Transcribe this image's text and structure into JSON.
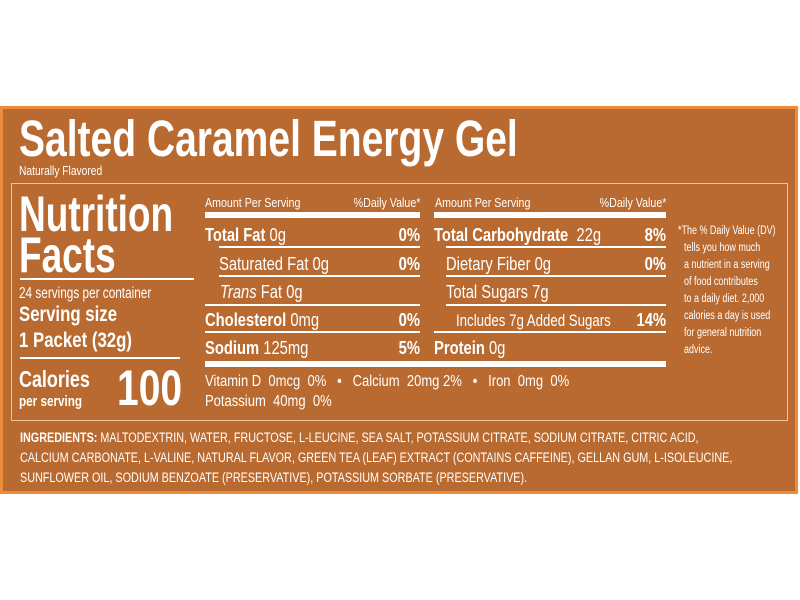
{
  "title": "Salted Caramel Energy Gel",
  "subtitle": "Naturally Flavored",
  "panel": {
    "heading_line1": "Nutrition",
    "heading_line2": "Facts",
    "servings": "24 servings per container",
    "serving_size_label": "Serving size",
    "serving_size_value": "1 Packet (32g)",
    "calories_label": "Calories",
    "per_serving": "per serving",
    "calories_value": "100"
  },
  "left_table": {
    "header_amount": "Amount Per Serving",
    "header_dv": "%Daily Value*",
    "rows": [
      {
        "name": "Total Fat",
        "amount": "0g",
        "dv": "0%"
      },
      {
        "name": "Saturated Fat",
        "amount": "0g",
        "dv": "0%"
      },
      {
        "name": "Trans",
        "name_suffix": "Fat",
        "amount": "0g",
        "dv": ""
      },
      {
        "name": "Cholesterol",
        "amount": "0mg",
        "dv": "0%"
      },
      {
        "name": "Sodium",
        "amount": "125mg",
        "dv": "5%"
      }
    ]
  },
  "right_table": {
    "header_amount": "Amount Per Serving",
    "header_dv": "%Daily Value*",
    "rows": [
      {
        "name": "Total Carbohydrate",
        "amount": "22g",
        "dv": "8%"
      },
      {
        "name": "Dietary Fiber",
        "amount": "0g",
        "dv": "0%"
      },
      {
        "name": "Total Sugars",
        "amount": "7g",
        "dv": ""
      },
      {
        "name": "Includes 7g Added Sugars",
        "amount": "",
        "dv": "14%"
      },
      {
        "name": "Protein",
        "amount": "0g",
        "dv": ""
      }
    ]
  },
  "micros": {
    "line1": "Vitamin D  0mcg  0%   •   Calcium  20mg 2%   •   Iron  0mg  0%",
    "line2": "Potassium  40mg  0%"
  },
  "footnote": [
    "*The % Daily Value (DV)",
    "tells you how much",
    "a nutrient in a serving",
    "of food contributes",
    "to a daily diet. 2,000",
    "calories a day is used",
    "for general nutrition",
    "advice."
  ],
  "ingredients": {
    "label": "INGREDIENTS:",
    "line1": "MALTODEXTRIN, WATER, FRUCTOSE, L-LEUCINE, SEA SALT, POTASSIUM CITRATE, SODIUM CITRATE, CITRIC ACID,",
    "line2": "CALCIUM CARBONATE, L-VALINE, NATURAL FLAVOR, GREEN TEA (LEAF) EXTRACT (CONTAINS CAFFEINE), GELLAN GUM, L-ISOLEUCINE,",
    "line3": "SUNFLOWER OIL, SODIUM BENZOATE (PRESERVATIVE), POTASSIUM SORBATE (PRESERVATIVE)."
  },
  "colors": {
    "background": "#b96a30",
    "border": "#ec8b3c",
    "text": "#ffffff"
  }
}
